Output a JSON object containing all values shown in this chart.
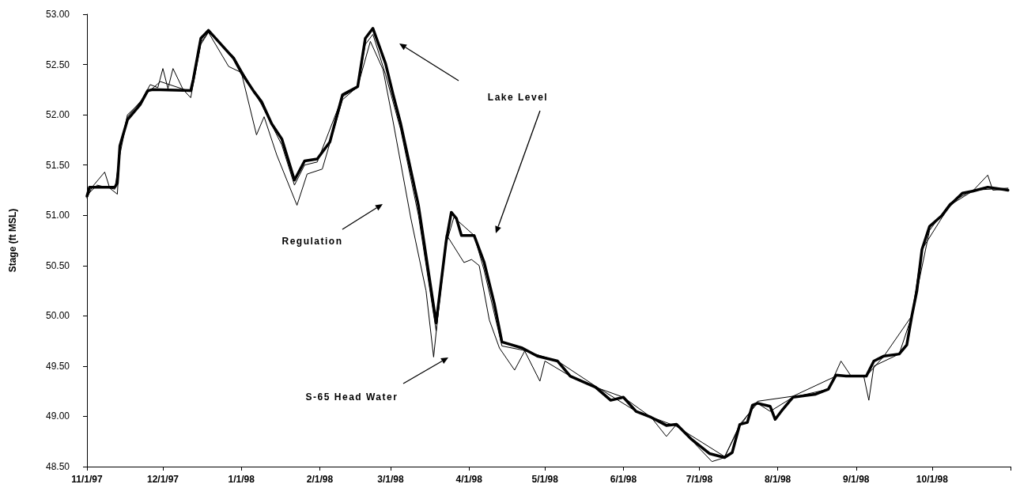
{
  "chart_data": {
    "type": "line",
    "ylabel": "Stage (ft MSL)",
    "xlim": [
      "1997-11-01",
      "1998-11-01"
    ],
    "xticks": [
      {
        "value": "1997-11-01",
        "label": "11/1/97"
      },
      {
        "value": "1997-12-01",
        "label": "12/1/97"
      },
      {
        "value": "1998-01-01",
        "label": "1/1/98"
      },
      {
        "value": "1998-02-01",
        "label": "2/1/98"
      },
      {
        "value": "1998-03-01",
        "label": "3/1/98"
      },
      {
        "value": "1998-04-01",
        "label": "4/1/98"
      },
      {
        "value": "1998-05-01",
        "label": "5/1/98"
      },
      {
        "value": "1998-06-01",
        "label": "6/1/98"
      },
      {
        "value": "1998-07-01",
        "label": "7/1/98"
      },
      {
        "value": "1998-08-01",
        "label": "8/1/98"
      },
      {
        "value": "1998-09-01",
        "label": "9/1/98"
      },
      {
        "value": "1998-10-01",
        "label": "10/1/98"
      },
      {
        "value": "1998-11-01",
        "label": null
      }
    ],
    "ylim": [
      48.5,
      53
    ],
    "yticks": [
      {
        "value": 48.5,
        "label": "48.50"
      },
      {
        "value": 49,
        "label": "49.00"
      },
      {
        "value": 49.5,
        "label": "49.50"
      },
      {
        "value": 50,
        "label": "50.00"
      },
      {
        "value": 50.5,
        "label": "50.50"
      },
      {
        "value": 51,
        "label": "51.00"
      },
      {
        "value": 51.5,
        "label": "51.50"
      },
      {
        "value": 52,
        "label": "52.00"
      },
      {
        "value": 52.5,
        "label": "52.50"
      },
      {
        "value": 53,
        "label": "53.00"
      }
    ],
    "grid": false,
    "marker": "none",
    "line_style": "solid",
    "series": [
      {
        "color": "#000000",
        "x": [
          "1997-11-01",
          "1997-11-03",
          "1997-11-08",
          "1997-11-10",
          "1997-11-13",
          "1997-11-14",
          "1997-11-17",
          "1997-11-22",
          "1997-11-26",
          "1997-11-29",
          "1997-12-01",
          "1997-12-03",
          "1997-12-05",
          "1997-12-09",
          "1997-12-12",
          "1997-12-16",
          "1997-12-19",
          "1997-12-27",
          "1998-01-01",
          "1998-01-07",
          "1998-01-10",
          "1998-01-15",
          "1998-01-23",
          "1998-01-27",
          "1998-02-02",
          "1998-02-10",
          "1998-02-16",
          "1998-02-21",
          "1998-02-26",
          "1998-03-02",
          "1998-03-09",
          "1998-03-15",
          "1998-03-18",
          "1998-03-23",
          "1998-03-30",
          "1998-04-02",
          "1998-04-05",
          "1998-04-09",
          "1998-04-13",
          "1998-04-19",
          "1998-04-23",
          "1998-04-29",
          "1998-05-01",
          "1998-05-11",
          "1998-05-21",
          "1998-06-01",
          "1998-06-12",
          "1998-06-18",
          "1998-06-22",
          "1998-07-06",
          "1998-07-11",
          "1998-07-17",
          "1998-07-24",
          "1998-07-29",
          "1998-08-07",
          "1998-08-21",
          "1998-08-26",
          "1998-08-30",
          "1998-09-04",
          "1998-09-06",
          "1998-09-08",
          "1998-09-18",
          "1998-09-23",
          "1998-09-27",
          "1998-10-02",
          "1998-10-08",
          "1998-10-17",
          "1998-10-23",
          "1998-10-25",
          "1998-10-31"
        ],
        "values": [
          51.17,
          51.28,
          51.43,
          51.27,
          51.21,
          51.65,
          52.0,
          52.12,
          52.3,
          52.27,
          52.46,
          52.26,
          52.46,
          52.25,
          52.17,
          52.7,
          52.82,
          52.48,
          52.42,
          51.8,
          51.98,
          51.6,
          51.1,
          51.41,
          51.46,
          52.15,
          52.28,
          52.73,
          52.45,
          51.93,
          50.97,
          50.25,
          49.59,
          50.81,
          50.53,
          50.56,
          50.5,
          49.96,
          49.68,
          49.46,
          49.65,
          49.35,
          49.55,
          49.4,
          49.29,
          49.19,
          48.99,
          48.8,
          48.92,
          48.55,
          48.59,
          48.92,
          49.13,
          49.05,
          49.19,
          49.27,
          49.55,
          49.4,
          49.4,
          49.16,
          49.5,
          49.62,
          50.0,
          50.66,
          50.86,
          51.1,
          51.24,
          51.4,
          51.25,
          51.26
        ]
      },
      {
        "color": "#000000",
        "x": [
          "1997-11-01",
          "1997-11-05",
          "1997-11-12",
          "1997-11-14",
          "1997-11-17",
          "1997-11-25",
          "1997-11-30",
          "1997-12-12",
          "1997-12-16",
          "1997-12-19",
          "1997-12-29",
          "1998-01-09",
          "1998-01-17",
          "1998-01-22",
          "1998-01-26",
          "1998-01-31",
          "1998-02-10",
          "1998-02-16",
          "1998-02-19",
          "1998-02-22",
          "1998-02-27",
          "1998-03-05",
          "1998-03-12",
          "1998-03-19",
          "1998-03-23",
          "1998-03-26",
          "1998-04-03",
          "1998-04-07",
          "1998-04-14",
          "1998-04-22",
          "1998-05-06",
          "1998-05-21",
          "1998-06-06",
          "1998-06-22",
          "1998-07-11",
          "1998-07-17",
          "1998-07-24",
          "1998-08-07",
          "1998-08-24",
          "1998-09-05",
          "1998-09-12",
          "1998-09-23",
          "1998-09-30",
          "1998-10-08",
          "1998-10-17",
          "1998-10-31"
        ],
        "values": [
          51.2,
          51.3,
          51.26,
          51.6,
          51.98,
          52.22,
          52.33,
          52.23,
          52.72,
          52.82,
          52.58,
          52.1,
          51.7,
          51.3,
          51.5,
          51.53,
          52.18,
          52.27,
          52.7,
          52.8,
          52.4,
          51.85,
          51.0,
          49.85,
          50.72,
          50.98,
          50.8,
          50.45,
          49.7,
          49.66,
          49.55,
          49.3,
          49.05,
          48.9,
          48.6,
          48.9,
          49.15,
          49.2,
          49.4,
          49.4,
          49.6,
          50.0,
          50.85,
          51.12,
          51.25,
          51.27
        ]
      },
      {
        "color": "#000000",
        "x": [
          "1997-11-01",
          "1997-11-02",
          "1997-11-12",
          "1997-11-13",
          "1997-11-14",
          "1997-11-17",
          "1997-11-22",
          "1997-11-25",
          "1997-11-27",
          "1997-12-12",
          "1997-12-13",
          "1997-12-16",
          "1997-12-19",
          "1997-12-24",
          "1997-12-29",
          "1998-01-01",
          "1998-01-06",
          "1998-01-09",
          "1998-01-13",
          "1998-01-17",
          "1998-01-22",
          "1998-01-26",
          "1998-01-31",
          "1998-02-05",
          "1998-02-10",
          "1998-02-16",
          "1998-02-19",
          "1998-02-22",
          "1998-02-27",
          "1998-03-02",
          "1998-03-05",
          "1998-03-12",
          "1998-03-19",
          "1998-03-23",
          "1998-03-25",
          "1998-03-27",
          "1998-03-29",
          "1998-04-03",
          "1998-04-07",
          "1998-04-11",
          "1998-04-14",
          "1998-04-22",
          "1998-04-28",
          "1998-05-06",
          "1998-05-11",
          "1998-05-21",
          "1998-05-27",
          "1998-06-01",
          "1998-06-06",
          "1998-06-12",
          "1998-06-18",
          "1998-06-22",
          "1998-06-28",
          "1998-07-05",
          "1998-07-11",
          "1998-07-14",
          "1998-07-17",
          "1998-07-20",
          "1998-07-22",
          "1998-07-24",
          "1998-07-29",
          "1998-07-31",
          "1998-08-03",
          "1998-08-07",
          "1998-08-16",
          "1998-08-21",
          "1998-08-24",
          "1998-08-28",
          "1998-09-05",
          "1998-09-08",
          "1998-09-12",
          "1998-09-18",
          "1998-09-21",
          "1998-09-23",
          "1998-09-25",
          "1998-09-27",
          "1998-09-30",
          "1998-10-05",
          "1998-10-08",
          "1998-10-13",
          "1998-10-17",
          "1998-10-23",
          "1998-10-31"
        ],
        "values": [
          51.19,
          51.28,
          51.28,
          51.32,
          51.69,
          51.95,
          52.1,
          52.24,
          52.25,
          52.24,
          52.35,
          52.76,
          52.84,
          52.7,
          52.56,
          52.42,
          52.23,
          52.13,
          51.91,
          51.76,
          51.35,
          51.54,
          51.56,
          51.73,
          52.2,
          52.28,
          52.76,
          52.86,
          52.51,
          52.2,
          51.91,
          51.1,
          49.93,
          50.75,
          51.03,
          50.97,
          50.8,
          50.8,
          50.53,
          50.12,
          49.74,
          49.68,
          49.6,
          49.55,
          49.4,
          49.29,
          49.16,
          49.19,
          49.05,
          48.99,
          48.91,
          48.92,
          48.77,
          48.63,
          48.59,
          48.64,
          48.92,
          48.94,
          49.11,
          49.13,
          49.1,
          48.97,
          49.07,
          49.19,
          49.22,
          49.27,
          49.41,
          49.4,
          49.4,
          49.55,
          49.6,
          49.62,
          49.71,
          50.0,
          50.25,
          50.66,
          50.89,
          51.0,
          51.1,
          51.22,
          51.24,
          51.28,
          51.25
        ]
      }
    ],
    "annotations": [
      "Lake Level",
      "Regulation",
      "S-65 Head Water"
    ]
  }
}
